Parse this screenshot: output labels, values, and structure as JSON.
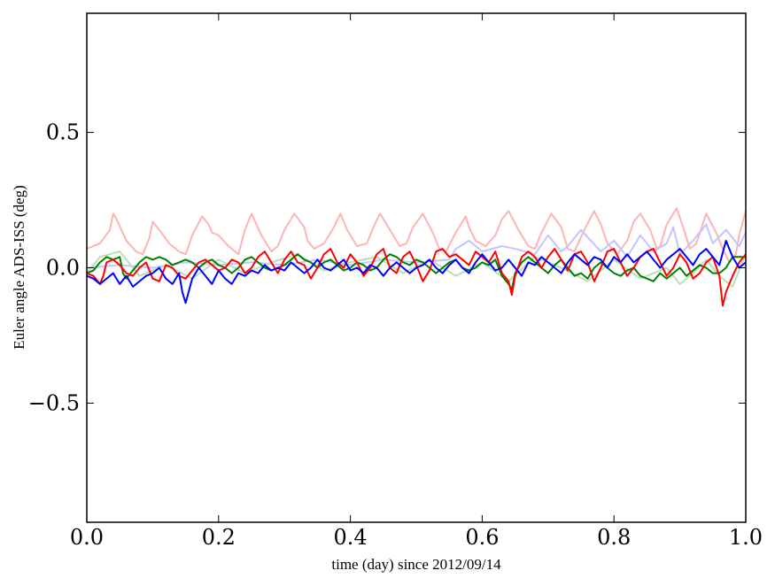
{
  "chart_data": {
    "type": "line",
    "title": "",
    "xlabel": "time (day) since 2012/09/14",
    "ylabel": "Euler angle ADS-ISS (deg)",
    "xlim": [
      0.0,
      1.0
    ],
    "ylim": [
      -0.94,
      0.94
    ],
    "xticks": [
      {
        "value": 0.0,
        "label": "0.0"
      },
      {
        "value": 0.2,
        "label": "0.2"
      },
      {
        "value": 0.4,
        "label": "0.4"
      },
      {
        "value": 0.6,
        "label": "0.6"
      },
      {
        "value": 0.8,
        "label": "0.8"
      },
      {
        "value": 1.0,
        "label": "1.0"
      }
    ],
    "yticks": [
      {
        "value": 0.5,
        "label": "0.5"
      },
      {
        "value": 0.0,
        "label": "0.0"
      },
      {
        "value": -0.5,
        "label": "−0.5"
      }
    ],
    "grid": false,
    "legend": "none",
    "series": [
      {
        "color": "#ffb3b3",
        "x": [
          0.0,
          0.02,
          0.035,
          0.04,
          0.045,
          0.06,
          0.075,
          0.085,
          0.095,
          0.1,
          0.11,
          0.125,
          0.14,
          0.15,
          0.16,
          0.175,
          0.185,
          0.19,
          0.2,
          0.215,
          0.23,
          0.24,
          0.25,
          0.265,
          0.28,
          0.29,
          0.3,
          0.315,
          0.33,
          0.335,
          0.345,
          0.36,
          0.375,
          0.385,
          0.395,
          0.41,
          0.425,
          0.435,
          0.445,
          0.46,
          0.475,
          0.485,
          0.495,
          0.51,
          0.525,
          0.535,
          0.545,
          0.56,
          0.575,
          0.58,
          0.59,
          0.605,
          0.62,
          0.63,
          0.64,
          0.655,
          0.67,
          0.68,
          0.69,
          0.705,
          0.72,
          0.73,
          0.74,
          0.755,
          0.77,
          0.78,
          0.79,
          0.805,
          0.82,
          0.83,
          0.84,
          0.855,
          0.865,
          0.87,
          0.88,
          0.895,
          0.905,
          0.915,
          0.925,
          0.94,
          0.955,
          0.965,
          0.975,
          0.985,
          0.99,
          1.0
        ],
        "values": [
          0.07,
          0.09,
          0.14,
          0.2,
          0.18,
          0.1,
          0.06,
          0.05,
          0.11,
          0.17,
          0.14,
          0.09,
          0.06,
          0.05,
          0.12,
          0.19,
          0.16,
          0.13,
          0.12,
          0.08,
          0.05,
          0.14,
          0.2,
          0.12,
          0.06,
          0.08,
          0.14,
          0.2,
          0.15,
          0.1,
          0.07,
          0.09,
          0.15,
          0.2,
          0.14,
          0.08,
          0.09,
          0.15,
          0.2,
          0.14,
          0.08,
          0.09,
          0.15,
          0.2,
          0.13,
          0.07,
          0.06,
          0.13,
          0.19,
          0.15,
          0.1,
          0.08,
          0.12,
          0.18,
          0.21,
          0.14,
          0.08,
          0.07,
          0.13,
          0.2,
          0.15,
          0.07,
          0.06,
          0.14,
          0.21,
          0.16,
          0.09,
          0.05,
          0.1,
          0.17,
          0.2,
          0.14,
          0.07,
          0.08,
          0.16,
          0.22,
          0.15,
          0.07,
          0.09,
          0.2,
          0.13,
          0.07,
          0.02,
          0.05,
          0.12,
          0.21
        ]
      },
      {
        "color": "#c4c4ff",
        "x": [
          0.0,
          0.05,
          0.1,
          0.15,
          0.2,
          0.25,
          0.3,
          0.35,
          0.4,
          0.45,
          0.5,
          0.55,
          0.56,
          0.58,
          0.6,
          0.63,
          0.65,
          0.68,
          0.7,
          0.72,
          0.73,
          0.75,
          0.78,
          0.8,
          0.82,
          0.84,
          0.86,
          0.88,
          0.89,
          0.9,
          0.92,
          0.94,
          0.95,
          0.97,
          0.99,
          1.0
        ],
        "values": [
          0.0,
          0.01,
          0.0,
          0.02,
          0.01,
          0.02,
          0.01,
          0.03,
          0.01,
          0.03,
          0.02,
          0.03,
          0.07,
          0.1,
          0.06,
          0.08,
          0.07,
          0.05,
          0.12,
          0.06,
          0.08,
          0.14,
          0.06,
          0.1,
          0.04,
          0.12,
          0.06,
          0.09,
          0.15,
          0.05,
          0.1,
          0.16,
          0.09,
          0.14,
          0.08,
          0.13
        ]
      },
      {
        "color": "#b8e0b8",
        "x": [
          0.0,
          0.02,
          0.05,
          0.08,
          0.12,
          0.16,
          0.2,
          0.24,
          0.28,
          0.32,
          0.36,
          0.4,
          0.44,
          0.48,
          0.52,
          0.56,
          0.6,
          0.64,
          0.68,
          0.72,
          0.76,
          0.8,
          0.84,
          0.88,
          0.9,
          0.92,
          0.94,
          0.96,
          0.98,
          1.0
        ],
        "values": [
          -0.02,
          0.04,
          0.06,
          -0.03,
          0.01,
          -0.04,
          0.03,
          -0.02,
          0.02,
          0.05,
          -0.01,
          0.02,
          0.04,
          -0.02,
          0.03,
          -0.03,
          0.02,
          -0.05,
          0.04,
          0.0,
          -0.05,
          0.03,
          -0.04,
          0.0,
          -0.06,
          -0.02,
          0.03,
          -0.03,
          -0.07,
          0.05
        ]
      },
      {
        "color": "#008000",
        "x": [
          0.0,
          0.01,
          0.02,
          0.03,
          0.04,
          0.05,
          0.055,
          0.06,
          0.07,
          0.08,
          0.09,
          0.1,
          0.11,
          0.12,
          0.13,
          0.14,
          0.15,
          0.16,
          0.17,
          0.18,
          0.19,
          0.2,
          0.21,
          0.22,
          0.23,
          0.24,
          0.25,
          0.26,
          0.27,
          0.28,
          0.29,
          0.3,
          0.31,
          0.32,
          0.33,
          0.34,
          0.35,
          0.36,
          0.37,
          0.38,
          0.39,
          0.4,
          0.41,
          0.42,
          0.43,
          0.44,
          0.45,
          0.46,
          0.47,
          0.48,
          0.49,
          0.5,
          0.51,
          0.52,
          0.53,
          0.54,
          0.55,
          0.56,
          0.57,
          0.58,
          0.59,
          0.6,
          0.61,
          0.62,
          0.63,
          0.64,
          0.645,
          0.65,
          0.66,
          0.67,
          0.68,
          0.69,
          0.7,
          0.71,
          0.72,
          0.73,
          0.74,
          0.75,
          0.76,
          0.77,
          0.78,
          0.79,
          0.8,
          0.81,
          0.82,
          0.83,
          0.84,
          0.85,
          0.86,
          0.87,
          0.88,
          0.89,
          0.9,
          0.91,
          0.92,
          0.93,
          0.94,
          0.95,
          0.96,
          0.97,
          0.98,
          0.99,
          1.0
        ],
        "values": [
          -0.02,
          -0.01,
          0.02,
          0.04,
          0.03,
          0.04,
          -0.02,
          -0.04,
          -0.01,
          0.02,
          0.04,
          0.03,
          0.04,
          0.03,
          0.01,
          0.02,
          0.03,
          0.02,
          0.0,
          0.02,
          0.03,
          0.01,
          0.0,
          -0.02,
          0.0,
          0.03,
          0.04,
          0.02,
          0.0,
          -0.01,
          0.0,
          0.01,
          0.03,
          0.05,
          0.03,
          0.02,
          0.0,
          0.02,
          0.03,
          0.01,
          -0.01,
          0.0,
          0.02,
          0.01,
          -0.01,
          0.0,
          0.03,
          0.05,
          0.04,
          0.02,
          0.01,
          0.03,
          0.02,
          0.0,
          -0.02,
          0.0,
          0.02,
          0.03,
          0.0,
          -0.01,
          0.0,
          0.02,
          0.01,
          0.03,
          -0.03,
          -0.06,
          -0.08,
          -0.02,
          0.02,
          0.04,
          0.02,
          0.0,
          -0.02,
          0.01,
          0.03,
          0.0,
          -0.03,
          -0.02,
          -0.04,
          0.0,
          0.02,
          0.0,
          -0.02,
          -0.03,
          -0.01,
          0.0,
          -0.03,
          -0.04,
          -0.05,
          -0.02,
          -0.04,
          -0.02,
          0.0,
          -0.03,
          -0.01,
          0.01,
          0.0,
          -0.02,
          -0.02,
          0.0,
          0.04,
          0.04,
          0.04
        ]
      },
      {
        "color": "#ff0000",
        "x": [
          0.0,
          0.01,
          0.02,
          0.025,
          0.03,
          0.04,
          0.05,
          0.06,
          0.07,
          0.08,
          0.09,
          0.1,
          0.11,
          0.12,
          0.13,
          0.14,
          0.15,
          0.16,
          0.17,
          0.18,
          0.19,
          0.2,
          0.21,
          0.22,
          0.23,
          0.24,
          0.25,
          0.26,
          0.27,
          0.28,
          0.29,
          0.3,
          0.31,
          0.32,
          0.33,
          0.34,
          0.35,
          0.36,
          0.37,
          0.38,
          0.39,
          0.4,
          0.41,
          0.42,
          0.43,
          0.44,
          0.45,
          0.46,
          0.47,
          0.48,
          0.49,
          0.5,
          0.51,
          0.52,
          0.53,
          0.54,
          0.55,
          0.56,
          0.57,
          0.58,
          0.59,
          0.6,
          0.61,
          0.62,
          0.63,
          0.64,
          0.645,
          0.65,
          0.66,
          0.67,
          0.68,
          0.69,
          0.7,
          0.71,
          0.72,
          0.73,
          0.74,
          0.75,
          0.76,
          0.77,
          0.78,
          0.79,
          0.8,
          0.81,
          0.82,
          0.83,
          0.84,
          0.85,
          0.86,
          0.87,
          0.88,
          0.89,
          0.9,
          0.91,
          0.92,
          0.93,
          0.94,
          0.95,
          0.96,
          0.965,
          0.97,
          0.98,
          0.99,
          1.0
        ],
        "values": [
          -0.02,
          -0.03,
          -0.06,
          -0.03,
          0.02,
          0.03,
          0.01,
          -0.02,
          -0.03,
          0.0,
          0.02,
          -0.04,
          -0.05,
          0.01,
          0.0,
          -0.03,
          -0.04,
          -0.01,
          0.02,
          0.03,
          0.01,
          -0.01,
          0.0,
          0.03,
          0.02,
          -0.02,
          0.0,
          0.04,
          0.06,
          0.02,
          -0.02,
          0.03,
          0.06,
          0.02,
          0.01,
          -0.04,
          0.0,
          0.05,
          0.07,
          0.02,
          0.0,
          0.05,
          0.02,
          -0.03,
          0.0,
          0.05,
          0.07,
          0.0,
          -0.02,
          0.04,
          0.06,
          0.01,
          -0.05,
          -0.01,
          0.06,
          0.07,
          0.04,
          0.05,
          0.03,
          0.01,
          0.06,
          0.04,
          0.02,
          0.06,
          -0.02,
          -0.05,
          -0.1,
          -0.03,
          0.04,
          0.06,
          0.04,
          0.0,
          0.04,
          0.07,
          0.03,
          -0.01,
          0.05,
          0.06,
          0.02,
          -0.05,
          0.0,
          0.06,
          0.07,
          0.02,
          -0.03,
          0.0,
          0.04,
          0.06,
          0.07,
          0.02,
          -0.03,
          0.0,
          0.05,
          0.02,
          -0.04,
          -0.02,
          0.02,
          0.04,
          -0.03,
          -0.14,
          -0.09,
          -0.03,
          0.02,
          0.05
        ]
      },
      {
        "color": "#0000ff",
        "x": [
          0.0,
          0.01,
          0.02,
          0.03,
          0.04,
          0.05,
          0.06,
          0.07,
          0.08,
          0.09,
          0.1,
          0.11,
          0.12,
          0.13,
          0.14,
          0.145,
          0.15,
          0.16,
          0.17,
          0.18,
          0.19,
          0.2,
          0.21,
          0.22,
          0.23,
          0.24,
          0.25,
          0.26,
          0.27,
          0.28,
          0.29,
          0.3,
          0.31,
          0.32,
          0.33,
          0.34,
          0.35,
          0.36,
          0.37,
          0.38,
          0.39,
          0.4,
          0.41,
          0.42,
          0.43,
          0.44,
          0.45,
          0.46,
          0.47,
          0.48,
          0.49,
          0.5,
          0.51,
          0.52,
          0.53,
          0.54,
          0.55,
          0.56,
          0.57,
          0.58,
          0.59,
          0.6,
          0.61,
          0.62,
          0.63,
          0.64,
          0.65,
          0.66,
          0.67,
          0.68,
          0.69,
          0.7,
          0.71,
          0.72,
          0.73,
          0.74,
          0.75,
          0.76,
          0.77,
          0.78,
          0.79,
          0.8,
          0.81,
          0.82,
          0.83,
          0.84,
          0.85,
          0.86,
          0.87,
          0.88,
          0.89,
          0.9,
          0.91,
          0.92,
          0.93,
          0.94,
          0.95,
          0.96,
          0.97,
          0.98,
          0.99,
          1.0
        ],
        "values": [
          -0.03,
          -0.04,
          -0.06,
          -0.04,
          -0.02,
          -0.06,
          -0.03,
          -0.07,
          -0.05,
          -0.03,
          -0.02,
          0.0,
          -0.04,
          -0.06,
          -0.02,
          -0.09,
          -0.13,
          -0.04,
          0.0,
          -0.03,
          -0.06,
          -0.01,
          -0.04,
          -0.06,
          -0.02,
          -0.03,
          -0.01,
          -0.02,
          0.01,
          -0.01,
          0.0,
          -0.01,
          0.02,
          0.0,
          -0.02,
          0.0,
          0.03,
          0.0,
          -0.01,
          0.01,
          0.03,
          -0.01,
          0.0,
          -0.02,
          0.01,
          0.0,
          -0.03,
          0.0,
          0.02,
          0.0,
          -0.02,
          0.0,
          0.01,
          0.03,
          0.0,
          -0.02,
          0.01,
          0.03,
          0.0,
          -0.02,
          0.02,
          0.05,
          0.02,
          -0.01,
          0.0,
          0.03,
          0.0,
          -0.03,
          0.02,
          0.01,
          0.04,
          0.02,
          0.0,
          -0.02,
          0.02,
          0.05,
          0.03,
          0.01,
          0.04,
          0.03,
          0.0,
          0.04,
          0.02,
          0.05,
          0.02,
          0.04,
          0.06,
          0.03,
          0.0,
          0.03,
          0.05,
          0.07,
          0.04,
          0.01,
          0.05,
          0.07,
          0.04,
          0.01,
          0.1,
          0.04,
          0.0,
          0.02
        ]
      }
    ]
  }
}
